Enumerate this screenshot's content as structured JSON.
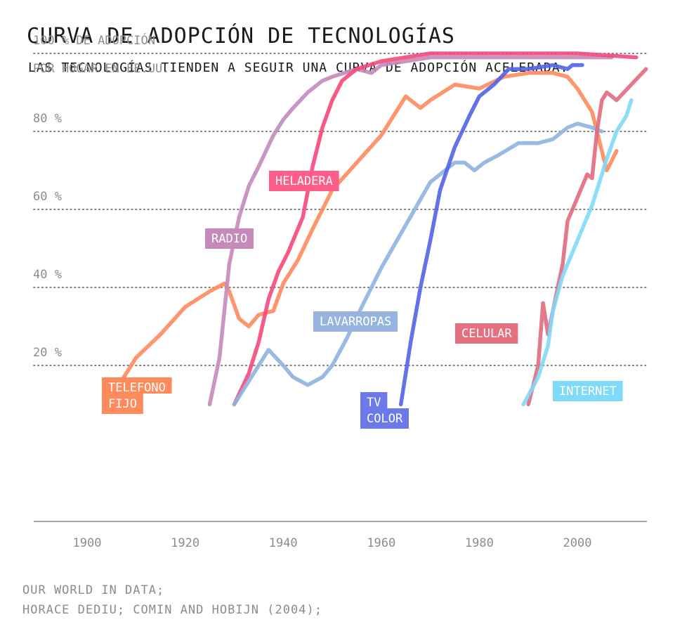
{
  "title": "CURVA DE ADOPCIÓN DE TECNOLOGÍAS",
  "subtitle": "LAS TECNOLOGÍAS TIENDEN A SEGUIR UNA CURVA DE ADOPCIÓN ACELERADA.",
  "source": [
    "OUR WORLD IN DATA;",
    "HORACE DEDIU; COMIN AND HOBIJN (2004);"
  ],
  "chart_data": {
    "type": "line",
    "title": "CURVA DE ADOPCIÓN DE TECNOLOGÍAS",
    "ylabel": [
      "100 % DE ADOPCIÓN",
      "POR HOGAR EN EE.UU."
    ],
    "xlabel": "",
    "xlim": [
      1889,
      2015
    ],
    "ylim": [
      -20,
      100
    ],
    "x_ticks": [
      1900,
      1920,
      1940,
      1960,
      1980,
      2000
    ],
    "y_ticks": [
      {
        "value": 20,
        "label": "20 %"
      },
      {
        "value": 40,
        "label": "40 %"
      },
      {
        "value": 60,
        "label": "60 %"
      },
      {
        "value": 80,
        "label": "80 %"
      },
      {
        "value": 100,
        "label": "100 % DE ADOPCIÓN"
      }
    ],
    "series": [
      {
        "name": "TELEFONO FIJO",
        "label": [
          "TELEFONO",
          "FIJO"
        ],
        "color": "#ff8a5c",
        "label_color": "#ff8a5c",
        "x": [
          1904,
          1910,
          1915,
          1920,
          1925,
          1928,
          1929,
          1931,
          1933,
          1935,
          1938,
          1940,
          1943,
          1946,
          1950,
          1955,
          1960,
          1965,
          1968,
          1970,
          1975,
          1980,
          1985,
          1990,
          1995,
          1998,
          2000,
          2003,
          2005,
          2006,
          2008
        ],
        "y": [
          10,
          22,
          28,
          35,
          39,
          41,
          39,
          32,
          30,
          33,
          34,
          41,
          47,
          55,
          65,
          72,
          79,
          89,
          86,
          88,
          92,
          91,
          94,
          95,
          95,
          94,
          91,
          85,
          75,
          70,
          75
        ]
      },
      {
        "name": "RADIO",
        "label": [
          "RADIO"
        ],
        "color": "#c58aba",
        "label_color": "#c58aba",
        "x": [
          1925,
          1927,
          1929,
          1931,
          1933,
          1935,
          1938,
          1940,
          1942,
          1945,
          1948,
          1950,
          1955,
          1958,
          1960,
          1965,
          1970,
          1980,
          1990,
          2000,
          2007
        ],
        "y": [
          10,
          22,
          46,
          58,
          66,
          71,
          79,
          83,
          86,
          90,
          93,
          94,
          96,
          95,
          97,
          98,
          99,
          99,
          99,
          99,
          99
        ]
      },
      {
        "name": "HELADERA",
        "label": [
          "HELADERA"
        ],
        "color": "#f5497a",
        "label_color": "#ff5c8a",
        "x": [
          1930,
          1933,
          1935,
          1937,
          1939,
          1941,
          1944,
          1946,
          1948,
          1950,
          1952,
          1955,
          1960,
          1970,
          1980,
          1990,
          2000,
          2012
        ],
        "y": [
          10,
          18,
          26,
          37,
          44,
          49,
          58,
          71,
          81,
          88,
          93,
          96,
          98,
          100,
          100,
          100,
          100,
          99
        ]
      },
      {
        "name": "LAVARROPAS",
        "label": [
          "LAVARROPAS"
        ],
        "color": "#8fb2e0",
        "label_color": "#97b4e0",
        "x": [
          1930,
          1934,
          1937,
          1940,
          1942,
          1945,
          1948,
          1950,
          1953,
          1956,
          1960,
          1965,
          1970,
          1975,
          1977,
          1979,
          1981,
          1984,
          1988,
          1992,
          1995,
          1998,
          2000,
          2003,
          2005
        ],
        "y": [
          10,
          18,
          24,
          20,
          17,
          15,
          17,
          20,
          27,
          35,
          45,
          56,
          67,
          72,
          72,
          70,
          72,
          74,
          77,
          77,
          78,
          81,
          82,
          81,
          80
        ]
      },
      {
        "name": "TV COLOR",
        "label": [
          "TV",
          "COLOR"
        ],
        "color": "#5163e6",
        "label_color": "#6c7ae9",
        "x": [
          1964,
          1966,
          1968,
          1970,
          1972,
          1975,
          1978,
          1980,
          1983,
          1986,
          1990,
          1995,
          1998,
          1999,
          2000,
          2001
        ],
        "y": [
          10,
          26,
          40,
          52,
          65,
          76,
          84,
          89,
          92,
          96,
          96,
          97,
          96,
          97,
          97,
          97
        ]
      },
      {
        "name": "CELULAR",
        "label": [
          "CELULAR"
        ],
        "color": "#e06a7e",
        "label_color": "#e5707f",
        "x": [
          1990,
          1992,
          1993,
          1994,
          1995,
          1997,
          1998,
          2000,
          2002,
          2003,
          2004,
          2005,
          2006,
          2008,
          2011,
          2014
        ],
        "y": [
          10,
          20,
          36,
          28,
          34,
          46,
          57,
          63,
          69,
          68,
          80,
          88,
          90,
          88,
          92,
          96
        ]
      },
      {
        "name": "INTERNET",
        "label": [
          "INTERNET"
        ],
        "color": "#7fd9f8",
        "label_color": "#7fd9f8",
        "x": [
          1989,
          1992,
          1994,
          1995,
          1997,
          2000,
          2003,
          2006,
          2008,
          2010,
          2011
        ],
        "y": [
          10,
          17,
          25,
          34,
          43,
          52,
          61,
          73,
          80,
          84,
          88
        ]
      }
    ]
  }
}
